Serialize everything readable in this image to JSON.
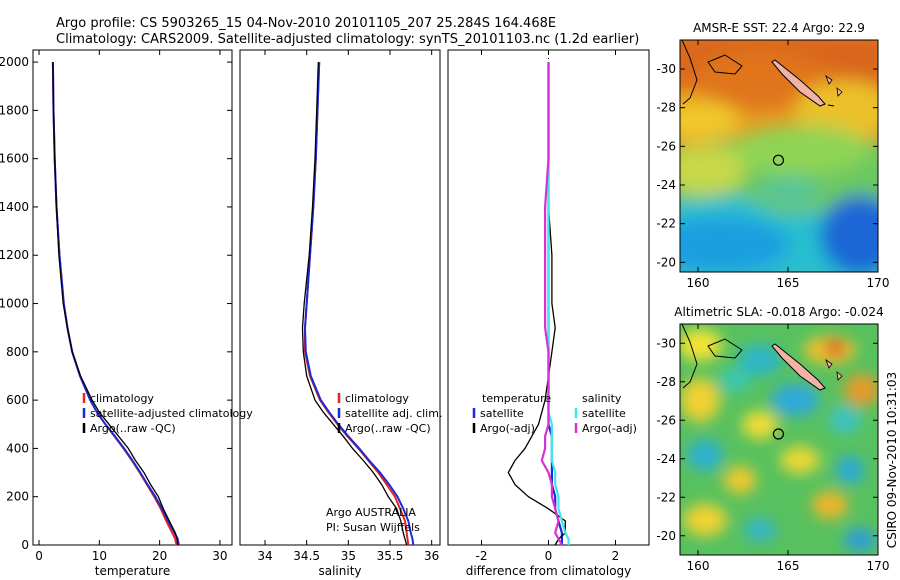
{
  "header": {
    "line1": "Argo profile: CS 5903265_15 04-Nov-2010 20101105_207 25.284S 164.468E",
    "line2": "Climatology: CARS2009. Satellite-adjusted climatology: synTS_20101103.nc (1.2d earlier)"
  },
  "side_credit": "CSIRO 09-Nov-2010 10:31:03",
  "panels": {
    "temperature": {
      "xlabel": "temperature",
      "legend": [
        "climatology",
        "satellite-adjusted climatology",
        "Argo(..raw -QC)"
      ]
    },
    "salinity": {
      "xlabel": "salinity",
      "legend": [
        "climatology",
        "satellite adj. clim.",
        "Argo(..raw -QC)"
      ],
      "note_line1": "Argo AUSTRALIA",
      "note_line2": "PI: Susan Wijffels"
    },
    "difference": {
      "xlabel": "difference from climatology",
      "legend_temp_header": "temperature",
      "legend_sal_header": "salinity",
      "legend_temp": [
        "satellite",
        "Argo(-adj)"
      ],
      "legend_sal": [
        "satellite",
        "Argo(-adj)"
      ]
    },
    "sst_map": {
      "title": "AMSR-E SST: 22.4 Argo: 22.9"
    },
    "sla_map": {
      "title": "Altimetric SLA: -0.018 Argo: -0.024"
    }
  },
  "colors": {
    "climatology": "#e8221c",
    "satellite": "#1a2bd8",
    "argo": "#000000",
    "sat_salinity": "#3ee8e8",
    "argo_salinity": "#d633d6"
  },
  "chart_data": [
    {
      "type": "line",
      "id": "temperature",
      "xlabel": "temperature",
      "ylabel": "",
      "xlim": [
        -1,
        32
      ],
      "ylim": [
        2050,
        0
      ],
      "xticks": [
        0,
        10,
        20,
        30
      ],
      "yticks": [
        0,
        200,
        400,
        600,
        800,
        1000,
        1200,
        1400,
        1600,
        1800,
        2000
      ],
      "depth": [
        0,
        25,
        50,
        100,
        150,
        200,
        250,
        300,
        350,
        400,
        450,
        500,
        550,
        600,
        700,
        800,
        900,
        1000,
        1200,
        1400,
        1600,
        1800,
        2000
      ],
      "series": [
        {
          "name": "climatology",
          "values": [
            22.8,
            22.6,
            22.1,
            21.1,
            20.2,
            19.1,
            17.9,
            16.7,
            15.4,
            14.0,
            12.5,
            11.0,
            9.6,
            8.5,
            6.8,
            5.5,
            4.7,
            4.1,
            3.4,
            2.9,
            2.6,
            2.4,
            2.3
          ]
        },
        {
          "name": "satellite-adjusted climatology",
          "values": [
            23.2,
            23.0,
            22.5,
            21.4,
            20.4,
            19.3,
            18.0,
            16.8,
            15.5,
            14.1,
            12.6,
            11.0,
            9.6,
            8.5,
            6.8,
            5.5,
            4.7,
            4.1,
            3.4,
            2.9,
            2.6,
            2.4,
            2.3
          ]
        },
        {
          "name": "Argo(..raw -QC)",
          "values": [
            23.0,
            22.9,
            22.6,
            21.6,
            20.6,
            19.8,
            18.5,
            17.4,
            16.0,
            14.8,
            13.2,
            11.6,
            10.0,
            8.8,
            6.9,
            5.5,
            4.7,
            4.0,
            3.3,
            2.9,
            2.6,
            2.4,
            2.3
          ]
        }
      ]
    },
    {
      "type": "line",
      "id": "salinity",
      "xlabel": "salinity",
      "ylabel": "",
      "xlim": [
        33.7,
        36.1
      ],
      "ylim": [
        2050,
        0
      ],
      "xticks": [
        34,
        34.5,
        35,
        35.5,
        36
      ],
      "depth": [
        0,
        25,
        50,
        100,
        150,
        200,
        250,
        300,
        350,
        400,
        450,
        500,
        550,
        600,
        700,
        800,
        900,
        1000,
        1200,
        1400,
        1600,
        1800,
        2000
      ],
      "series": [
        {
          "name": "climatology",
          "values": [
            35.72,
            35.71,
            35.7,
            35.68,
            35.62,
            35.56,
            35.46,
            35.36,
            35.24,
            35.12,
            34.99,
            34.87,
            34.76,
            34.66,
            34.54,
            34.48,
            34.48,
            34.5,
            34.54,
            34.58,
            34.61,
            34.63,
            34.65
          ]
        },
        {
          "name": "satellite adj. clim.",
          "values": [
            35.78,
            35.77,
            35.75,
            35.72,
            35.66,
            35.59,
            35.49,
            35.38,
            35.25,
            35.13,
            35.0,
            34.88,
            34.77,
            34.67,
            34.55,
            34.49,
            34.48,
            34.5,
            34.54,
            34.58,
            34.61,
            34.63,
            34.65
          ]
        },
        {
          "name": "Argo(..raw -QC)",
          "values": [
            35.7,
            35.68,
            35.66,
            35.63,
            35.58,
            35.48,
            35.4,
            35.3,
            35.18,
            35.05,
            34.94,
            34.82,
            34.7,
            34.6,
            34.5,
            34.46,
            34.45,
            34.47,
            34.53,
            34.57,
            34.6,
            34.62,
            34.64
          ]
        }
      ]
    },
    {
      "type": "line",
      "id": "difference",
      "xlabel": "difference from climatology",
      "ylabel": "",
      "xlim": [
        -3,
        3
      ],
      "ylim": [
        2050,
        0
      ],
      "xticks": [
        -2,
        0,
        2
      ],
      "depth": [
        0,
        25,
        50,
        100,
        150,
        200,
        250,
        300,
        350,
        400,
        450,
        500,
        550,
        600,
        700,
        800,
        900,
        1000,
        1200,
        1400,
        1600,
        1800,
        2000
      ],
      "series": [
        {
          "name": "temperature satellite",
          "values": [
            0.4,
            0.4,
            0.4,
            0.3,
            0.2,
            0.2,
            0.1,
            0.1,
            0.1,
            0.1,
            0.1,
            0.0,
            0.0,
            0.0,
            0.0,
            0.0,
            0.0,
            0.0,
            0.0,
            0.0,
            0.0,
            0.0,
            0.0
          ]
        },
        {
          "name": "temperature Argo(-adj)",
          "values": [
            0.2,
            0.3,
            0.5,
            0.5,
            0.0,
            -0.6,
            -1.0,
            -1.2,
            -1.0,
            -0.7,
            -0.5,
            -0.3,
            -0.2,
            -0.1,
            0.0,
            0.1,
            0.2,
            0.1,
            0.1,
            0.0,
            0.0,
            0.0,
            0.0
          ]
        },
        {
          "name": "salinity satellite",
          "values": [
            0.6,
            0.6,
            0.5,
            0.4,
            0.3,
            0.3,
            0.2,
            0.2,
            0.1,
            0.1,
            0.1,
            0.1,
            0.0,
            0.0,
            0.0,
            0.0,
            0.0,
            0.0,
            0.0,
            0.0,
            0.0,
            0.0,
            0.0
          ]
        },
        {
          "name": "salinity Argo(-adj)",
          "values": [
            0.4,
            0.3,
            0.2,
            0.3,
            0.2,
            0.1,
            0.1,
            0.0,
            -0.2,
            -0.1,
            -0.1,
            0.0,
            0.0,
            0.0,
            0.0,
            0.0,
            -0.1,
            -0.1,
            -0.1,
            -0.1,
            0.0,
            0.0,
            0.0
          ]
        }
      ]
    },
    {
      "type": "heatmap",
      "id": "sst_map",
      "title": "AMSR-E SST: 22.4 Argo: 22.9",
      "xlim": [
        159,
        170
      ],
      "ylim": [
        -31.5,
        -19.5
      ],
      "xticks": [
        160,
        165,
        170
      ],
      "yticks": [
        -20,
        -22,
        -24,
        -26,
        -28,
        -30
      ],
      "marker": {
        "x": 164.468,
        "y": -25.284
      }
    },
    {
      "type": "heatmap",
      "id": "sla_map",
      "title": "Altimetric SLA: -0.018 Argo: -0.024",
      "xlim": [
        159,
        170
      ],
      "ylim": [
        -31,
        -19
      ],
      "xticks": [
        160,
        165,
        170
      ],
      "yticks": [
        -20,
        -22,
        -24,
        -26,
        -28,
        -30
      ],
      "marker": {
        "x": 164.468,
        "y": -25.284
      }
    }
  ]
}
